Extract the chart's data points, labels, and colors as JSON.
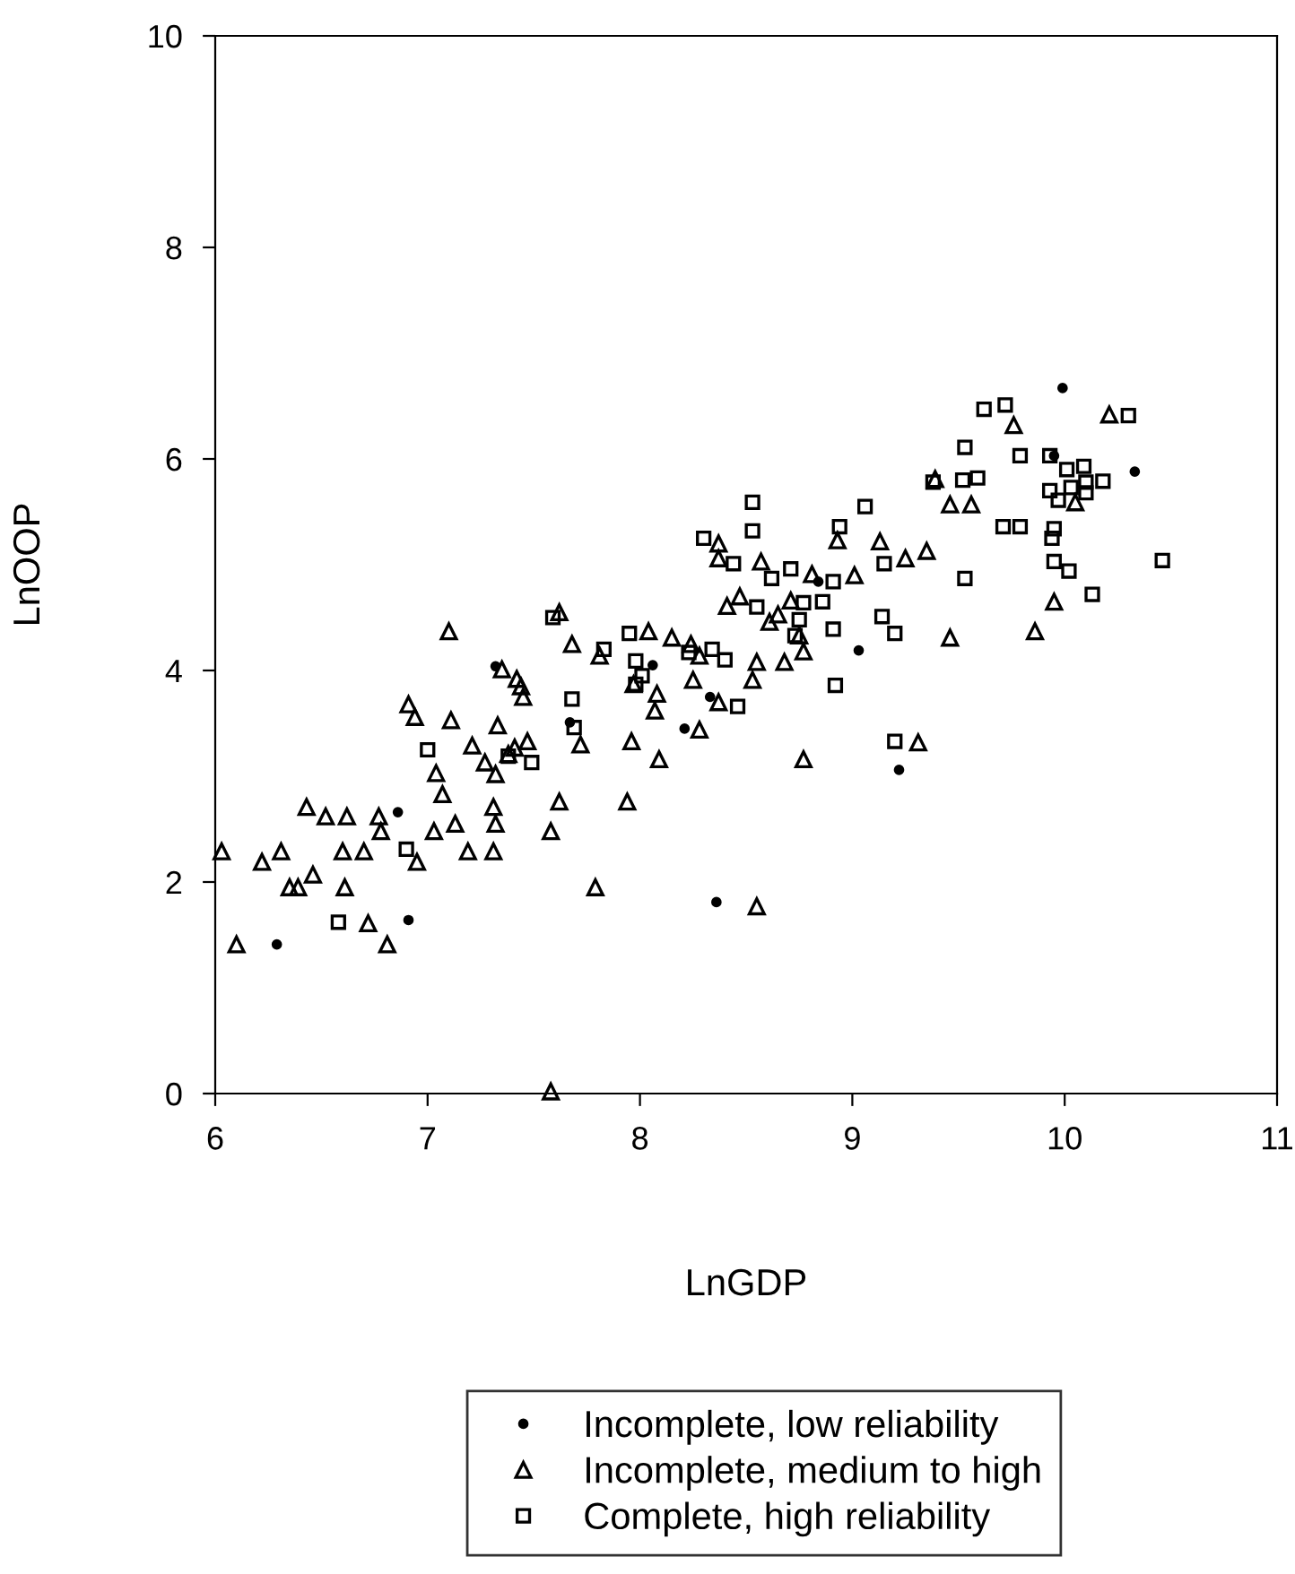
{
  "chart_data": {
    "type": "scatter",
    "xlabel": "LnGDP",
    "ylabel": "LnOOP",
    "xlim": [
      6,
      11
    ],
    "ylim": [
      0,
      10
    ],
    "xticks": [
      6,
      7,
      8,
      9,
      10,
      11
    ],
    "yticks": [
      0,
      2,
      4,
      6,
      8,
      10
    ],
    "grid": false,
    "legend": "bottom",
    "series": [
      {
        "name": "Incomplete, low reliability",
        "color": "#000000",
        "marker": "circle",
        "x": [
          6.29,
          6.86,
          6.91,
          7.32,
          7.67,
          8.06,
          8.21,
          8.33,
          8.36,
          9.03,
          9.22,
          9.99,
          10.33,
          9.95,
          8.84
        ],
        "values": [
          1.41,
          2.66,
          1.64,
          4.04,
          3.51,
          4.05,
          3.45,
          3.75,
          1.81,
          4.19,
          3.06,
          6.67,
          5.88,
          6.03,
          4.84
        ]
      },
      {
        "name": "Incomplete, medium to high",
        "color": "#000000",
        "marker": "triangle",
        "x": [
          6.03,
          6.1,
          6.22,
          6.31,
          6.35,
          6.39,
          6.43,
          6.46,
          6.52,
          6.62,
          6.6,
          6.61,
          6.7,
          6.72,
          6.77,
          6.78,
          6.81,
          6.91,
          6.94,
          6.95,
          7.03,
          7.04,
          7.07,
          7.1,
          7.11,
          7.13,
          7.19,
          7.21,
          7.27,
          7.31,
          7.31,
          7.32,
          7.32,
          7.33,
          7.35,
          7.38,
          7.41,
          7.42,
          7.45,
          7.44,
          7.47,
          7.58,
          7.58,
          7.62,
          7.62,
          7.68,
          7.72,
          7.79,
          7.81,
          7.94,
          7.96,
          7.97,
          8.04,
          8.07,
          8.08,
          8.09,
          8.15,
          8.24,
          8.25,
          8.28,
          8.28,
          8.37,
          8.37,
          8.37,
          8.41,
          8.47,
          8.57,
          8.53,
          8.55,
          8.55,
          8.61,
          8.65,
          8.68,
          8.71,
          8.75,
          8.77,
          8.77,
          8.81,
          8.93,
          9.01,
          9.13,
          9.25,
          9.31,
          9.35,
          9.39,
          9.46,
          9.46,
          9.56,
          9.76,
          9.86,
          9.95,
          10.05,
          10.21
        ],
        "values": [
          2.29,
          1.41,
          2.19,
          2.29,
          1.95,
          1.95,
          2.71,
          2.07,
          2.62,
          2.62,
          2.29,
          1.95,
          2.29,
          1.61,
          2.62,
          2.48,
          1.41,
          3.68,
          3.56,
          2.19,
          2.48,
          3.03,
          2.83,
          4.37,
          3.53,
          2.55,
          2.29,
          3.29,
          3.13,
          2.71,
          2.29,
          2.55,
          3.02,
          3.48,
          4.01,
          3.21,
          3.27,
          3.92,
          3.75,
          3.85,
          3.33,
          2.48,
          0.02,
          4.55,
          2.76,
          4.25,
          3.3,
          1.95,
          4.14,
          2.76,
          3.33,
          3.87,
          4.37,
          3.62,
          3.78,
          3.16,
          4.31,
          4.25,
          3.91,
          4.14,
          3.44,
          5.2,
          5.06,
          3.7,
          4.61,
          4.7,
          5.03,
          3.91,
          4.08,
          1.77,
          4.46,
          4.53,
          4.08,
          4.66,
          4.33,
          4.18,
          3.16,
          4.91,
          5.23,
          4.9,
          5.22,
          5.06,
          3.32,
          5.13,
          5.81,
          4.31,
          5.57,
          5.57,
          6.32,
          4.37,
          4.65,
          5.59,
          6.42
        ]
      },
      {
        "name": "Complete, high reliability",
        "color": "#000000",
        "marker": "square",
        "x": [
          6.58,
          6.9,
          7.0,
          7.38,
          7.49,
          7.59,
          7.68,
          7.69,
          7.83,
          7.95,
          7.98,
          8.01,
          7.98,
          8.23,
          8.3,
          8.34,
          8.4,
          8.44,
          8.46,
          8.53,
          8.53,
          8.55,
          8.62,
          8.71,
          8.73,
          8.75,
          8.77,
          8.86,
          8.91,
          8.91,
          8.94,
          8.92,
          9.06,
          9.14,
          9.15,
          9.2,
          9.2,
          9.38,
          9.53,
          9.53,
          9.52,
          9.59,
          9.62,
          9.71,
          9.72,
          9.79,
          9.79,
          9.93,
          9.93,
          9.95,
          9.94,
          9.95,
          9.97,
          10.01,
          10.02,
          10.03,
          10.09,
          10.1,
          10.1,
          10.13,
          10.18,
          10.3,
          10.46
        ],
        "values": [
          1.62,
          2.31,
          3.25,
          3.19,
          3.13,
          4.5,
          3.73,
          3.46,
          4.2,
          4.35,
          4.09,
          3.95,
          3.87,
          4.17,
          5.25,
          4.2,
          4.1,
          5.01,
          3.66,
          5.59,
          5.32,
          4.6,
          4.87,
          4.96,
          4.33,
          4.48,
          4.64,
          4.65,
          4.84,
          4.39,
          5.36,
          3.86,
          5.55,
          4.51,
          5.01,
          4.35,
          3.33,
          5.78,
          6.11,
          4.87,
          5.8,
          5.82,
          6.47,
          5.36,
          6.51,
          6.03,
          5.36,
          6.03,
          5.7,
          5.34,
          5.25,
          5.03,
          5.61,
          5.9,
          4.94,
          5.73,
          5.93,
          5.78,
          5.68,
          4.72,
          5.79,
          6.41,
          5.04
        ]
      }
    ]
  }
}
